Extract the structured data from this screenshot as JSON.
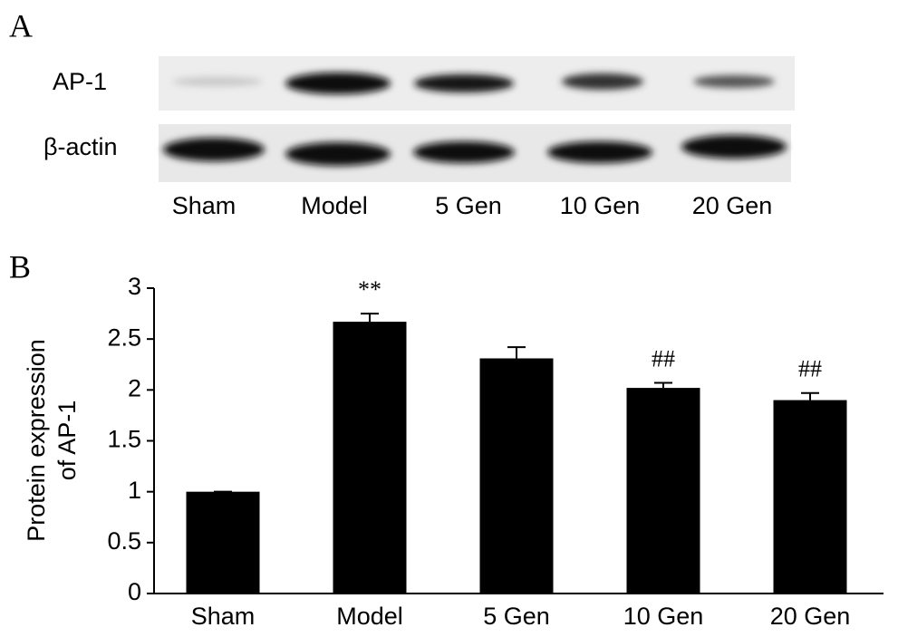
{
  "panel_labels": [
    "A",
    "B"
  ],
  "blot": {
    "rows": [
      "AP-1",
      "β-actin"
    ],
    "lanes": [
      "Sham",
      "Model",
      "5 Gen",
      "10 Gen",
      "20 Gen"
    ]
  },
  "chart_data": {
    "type": "bar",
    "y_label": [
      "Protein expression",
      "of AP-1"
    ],
    "categories": [
      "Sham",
      "Model",
      "5 Gen",
      "10 Gen",
      "20 Gen"
    ],
    "values": [
      1.0,
      2.67,
      2.31,
      2.02,
      1.9
    ],
    "errors": [
      0,
      0.08,
      0.11,
      0.05,
      0.07
    ],
    "annotations": [
      null,
      "**",
      null,
      "##",
      "##"
    ],
    "color": "#000000",
    "ylim": [
      0,
      3
    ],
    "yticks": [
      0,
      0.5,
      1,
      1.5,
      2,
      2.5,
      3
    ]
  }
}
